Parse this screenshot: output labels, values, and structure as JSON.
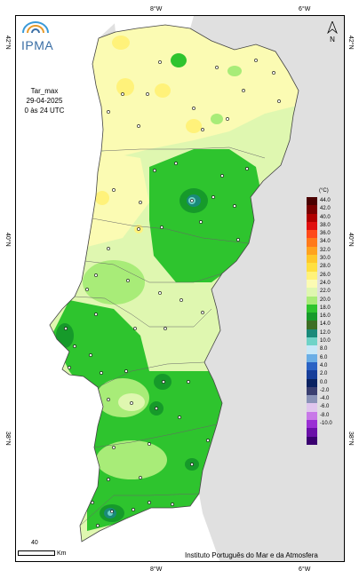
{
  "header": {
    "logo_text": "IPMA",
    "variable": "Tar_max",
    "date": "29-04-2025",
    "period": "0 às 24 UTC"
  },
  "north_label": "N",
  "coords": {
    "top_8w": "8°W",
    "top_6w": "6°W",
    "bottom_8w": "8°W",
    "bottom_6w": "6°W",
    "left_42n": "42°N",
    "left_40n": "40°N",
    "left_38n": "38°N",
    "right_42n": "42°N",
    "right_40n": "40°N",
    "right_38n": "38°N"
  },
  "legend": {
    "unit": "(°C)",
    "items": [
      {
        "label": "44.0",
        "color": "#4a0000"
      },
      {
        "label": "42.0",
        "color": "#7a0000"
      },
      {
        "label": "40.0",
        "color": "#b00000"
      },
      {
        "label": "38.0",
        "color": "#e01010"
      },
      {
        "label": "36.0",
        "color": "#ff4a1a"
      },
      {
        "label": "34.0",
        "color": "#ff7a1a"
      },
      {
        "label": "32.0",
        "color": "#ffa31f"
      },
      {
        "label": "30.0",
        "color": "#ffc82a"
      },
      {
        "label": "28.0",
        "color": "#ffe040"
      },
      {
        "label": "26.0",
        "color": "#fff27a"
      },
      {
        "label": "24.0",
        "color": "#fbfbb3"
      },
      {
        "label": "22.0",
        "color": "#dff7b0"
      },
      {
        "label": "20.0",
        "color": "#a8ec78"
      },
      {
        "label": "18.0",
        "color": "#2ec42e"
      },
      {
        "label": "16.0",
        "color": "#169a2a"
      },
      {
        "label": "14.0",
        "color": "#3e6e24"
      },
      {
        "label": "12.0",
        "color": "#1a8a7a"
      },
      {
        "label": "10.0",
        "color": "#6fd3c7"
      },
      {
        "label": "8.0",
        "color": "#c8e8f8"
      },
      {
        "label": "6.0",
        "color": "#6aaee6"
      },
      {
        "label": "4.0",
        "color": "#2a62c4"
      },
      {
        "label": "2.0",
        "color": "#173e99"
      },
      {
        "label": "0.0",
        "color": "#0a2260"
      },
      {
        "label": "-2.0",
        "color": "#3a3f70"
      },
      {
        "label": "-4.0",
        "color": "#8a93b8"
      },
      {
        "label": "-6.0",
        "color": "#e0c6ee"
      },
      {
        "label": "-8.0",
        "color": "#c879e8"
      },
      {
        "label": "-10.0",
        "color": "#9a2fd4"
      },
      {
        "label": "",
        "color": "#6a10a8"
      },
      {
        "label": "",
        "color": "#3a0070"
      }
    ]
  },
  "scale": {
    "value": "40",
    "unit": "Km"
  },
  "credit": "Instituto Português do Mar e da Atmosfera",
  "colors": {
    "sea": "#ffffff",
    "spain": "#e0e0e0",
    "border": "#444444"
  }
}
